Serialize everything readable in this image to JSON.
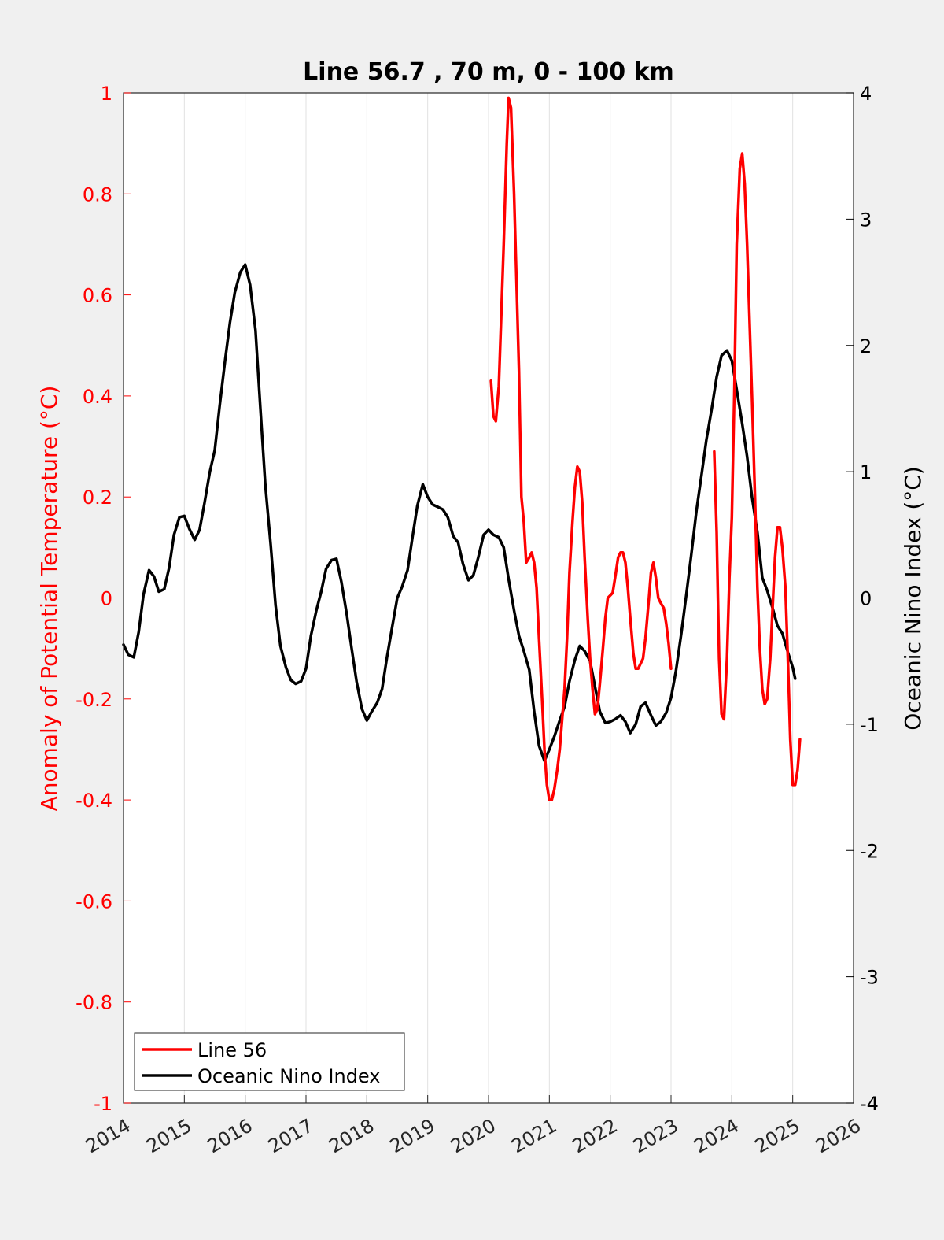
{
  "chart_data": {
    "type": "line",
    "title": "Line 56.7 , 70 m, 0 - 100 km",
    "ylabel_left": "Anomaly of Potential Temperature (°C)",
    "ylabel_right": "Oceanic Nino Index (°C)",
    "xlim": [
      2014,
      2026
    ],
    "ylim_left": [
      -1,
      1
    ],
    "ylim_right": [
      -4,
      4
    ],
    "x_ticks": [
      2014,
      2015,
      2016,
      2017,
      2018,
      2019,
      2020,
      2021,
      2022,
      2023,
      2024,
      2025,
      2026
    ],
    "x_tick_labels": [
      "2014",
      "2015",
      "2016",
      "2017",
      "2018",
      "2019",
      "2020",
      "2021",
      "2022",
      "2023",
      "2024",
      "2025",
      "2026"
    ],
    "y_ticks_left": [
      1,
      0.8,
      0.6,
      0.4,
      0.2,
      0,
      -0.2,
      -0.4,
      -0.6,
      -0.8,
      -1
    ],
    "y_tick_labels_left": [
      "1",
      "0.8",
      "0.6",
      "0.4",
      "0.2",
      "0",
      "-0.2",
      "-0.4",
      "-0.6",
      "-0.8",
      "-1"
    ],
    "y_ticks_right": [
      4,
      3,
      2,
      1,
      0,
      -1,
      -2,
      -3,
      -4
    ],
    "y_tick_labels_right": [
      "4",
      "3",
      "2",
      "1",
      "0",
      "-1",
      "-2",
      "-3",
      "-4"
    ],
    "grid": "vertical",
    "zero_line": true,
    "legend_position": "bottom-left",
    "colors": {
      "line56": "#ff0000",
      "oni": "#000000",
      "left_axis": "#ff0000",
      "right_axis": "#000000"
    },
    "series": [
      {
        "name": "Line 56",
        "axis": "left",
        "color": "#ff0000",
        "segments": [
          [
            [
              2020.04,
              0.43
            ],
            [
              2020.08,
              0.36
            ],
            [
              2020.12,
              0.35
            ],
            [
              2020.17,
              0.42
            ],
            [
              2020.25,
              0.7
            ],
            [
              2020.3,
              0.9
            ],
            [
              2020.33,
              0.99
            ],
            [
              2020.37,
              0.97
            ],
            [
              2020.42,
              0.8
            ],
            [
              2020.5,
              0.45
            ],
            [
              2020.54,
              0.2
            ],
            [
              2020.58,
              0.15
            ],
            [
              2020.62,
              0.07
            ],
            [
              2020.67,
              0.08
            ],
            [
              2020.71,
              0.09
            ],
            [
              2020.75,
              0.07
            ],
            [
              2020.79,
              0.02
            ],
            [
              2020.83,
              -0.08
            ],
            [
              2020.88,
              -0.2
            ],
            [
              2020.92,
              -0.3
            ],
            [
              2020.96,
              -0.37
            ],
            [
              2021.0,
              -0.4
            ],
            [
              2021.04,
              -0.4
            ],
            [
              2021.08,
              -0.38
            ],
            [
              2021.13,
              -0.34
            ],
            [
              2021.17,
              -0.3
            ],
            [
              2021.25,
              -0.18
            ],
            [
              2021.29,
              -0.08
            ],
            [
              2021.33,
              0.05
            ],
            [
              2021.38,
              0.15
            ],
            [
              2021.42,
              0.22
            ],
            [
              2021.46,
              0.26
            ],
            [
              2021.5,
              0.25
            ],
            [
              2021.54,
              0.19
            ],
            [
              2021.58,
              0.08
            ],
            [
              2021.63,
              -0.04
            ],
            [
              2021.67,
              -0.12
            ],
            [
              2021.71,
              -0.18
            ],
            [
              2021.75,
              -0.23
            ],
            [
              2021.79,
              -0.22
            ],
            [
              2021.83,
              -0.17
            ],
            [
              2021.88,
              -0.1
            ],
            [
              2021.92,
              -0.04
            ],
            [
              2021.96,
              0.0
            ],
            [
              2022.04,
              0.01
            ],
            [
              2022.08,
              0.04
            ],
            [
              2022.13,
              0.08
            ],
            [
              2022.17,
              0.09
            ],
            [
              2022.21,
              0.09
            ],
            [
              2022.25,
              0.07
            ],
            [
              2022.29,
              0.02
            ],
            [
              2022.33,
              -0.04
            ],
            [
              2022.38,
              -0.11
            ],
            [
              2022.42,
              -0.14
            ],
            [
              2022.46,
              -0.14
            ],
            [
              2022.5,
              -0.13
            ],
            [
              2022.54,
              -0.12
            ],
            [
              2022.58,
              -0.08
            ],
            [
              2022.63,
              -0.01
            ],
            [
              2022.67,
              0.05
            ],
            [
              2022.71,
              0.07
            ],
            [
              2022.75,
              0.04
            ],
            [
              2022.79,
              0.0
            ],
            [
              2022.83,
              -0.01
            ],
            [
              2022.88,
              -0.02
            ],
            [
              2022.92,
              -0.05
            ],
            [
              2022.96,
              -0.09
            ],
            [
              2023.0,
              -0.14
            ]
          ],
          [
            [
              2023.71,
              0.29
            ],
            [
              2023.75,
              0.13
            ],
            [
              2023.79,
              -0.12
            ],
            [
              2023.83,
              -0.23
            ],
            [
              2023.87,
              -0.24
            ],
            [
              2023.92,
              -0.12
            ],
            [
              2023.96,
              0.04
            ],
            [
              2024.0,
              0.16
            ],
            [
              2024.04,
              0.4
            ],
            [
              2024.08,
              0.7
            ],
            [
              2024.13,
              0.85
            ],
            [
              2024.17,
              0.88
            ],
            [
              2024.21,
              0.82
            ],
            [
              2024.25,
              0.7
            ],
            [
              2024.29,
              0.55
            ],
            [
              2024.33,
              0.4
            ],
            [
              2024.38,
              0.2
            ],
            [
              2024.42,
              0.02
            ],
            [
              2024.46,
              -0.1
            ],
            [
              2024.5,
              -0.18
            ],
            [
              2024.54,
              -0.21
            ],
            [
              2024.58,
              -0.2
            ],
            [
              2024.63,
              -0.12
            ],
            [
              2024.67,
              -0.02
            ],
            [
              2024.71,
              0.08
            ],
            [
              2024.75,
              0.14
            ],
            [
              2024.79,
              0.14
            ],
            [
              2024.83,
              0.1
            ],
            [
              2024.88,
              0.02
            ],
            [
              2024.92,
              -0.12
            ],
            [
              2024.96,
              -0.28
            ],
            [
              2025.0,
              -0.37
            ],
            [
              2025.04,
              -0.37
            ],
            [
              2025.08,
              -0.34
            ],
            [
              2025.12,
              -0.28
            ]
          ]
        ]
      },
      {
        "name": "Oceanic Nino Index",
        "axis": "right",
        "color": "#000000",
        "segments": [
          [
            [
              2014.0,
              -0.37
            ],
            [
              2014.08,
              -0.45
            ],
            [
              2014.17,
              -0.47
            ],
            [
              2014.25,
              -0.27
            ],
            [
              2014.33,
              0.03
            ],
            [
              2014.42,
              0.22
            ],
            [
              2014.5,
              0.17
            ],
            [
              2014.58,
              0.05
            ],
            [
              2014.67,
              0.07
            ],
            [
              2014.75,
              0.24
            ],
            [
              2014.83,
              0.5
            ],
            [
              2014.92,
              0.64
            ],
            [
              2015.0,
              0.65
            ],
            [
              2015.08,
              0.55
            ],
            [
              2015.17,
              0.46
            ],
            [
              2015.25,
              0.54
            ],
            [
              2015.33,
              0.75
            ],
            [
              2015.42,
              1.0
            ],
            [
              2015.5,
              1.17
            ],
            [
              2015.58,
              1.52
            ],
            [
              2015.67,
              1.88
            ],
            [
              2015.75,
              2.18
            ],
            [
              2015.83,
              2.42
            ],
            [
              2015.92,
              2.58
            ],
            [
              2016.0,
              2.64
            ],
            [
              2016.08,
              2.48
            ],
            [
              2016.17,
              2.12
            ],
            [
              2016.25,
              1.5
            ],
            [
              2016.33,
              0.9
            ],
            [
              2016.42,
              0.42
            ],
            [
              2016.5,
              -0.06
            ],
            [
              2016.58,
              -0.38
            ],
            [
              2016.67,
              -0.55
            ],
            [
              2016.75,
              -0.65
            ],
            [
              2016.83,
              -0.68
            ],
            [
              2016.92,
              -0.66
            ],
            [
              2017.0,
              -0.56
            ],
            [
              2017.08,
              -0.3
            ],
            [
              2017.17,
              -0.1
            ],
            [
              2017.25,
              0.05
            ],
            [
              2017.33,
              0.23
            ],
            [
              2017.42,
              0.3
            ],
            [
              2017.5,
              0.31
            ],
            [
              2017.58,
              0.13
            ],
            [
              2017.67,
              -0.13
            ],
            [
              2017.75,
              -0.4
            ],
            [
              2017.83,
              -0.66
            ],
            [
              2017.92,
              -0.88
            ],
            [
              2018.0,
              -0.97
            ],
            [
              2018.08,
              -0.9
            ],
            [
              2018.17,
              -0.83
            ],
            [
              2018.25,
              -0.72
            ],
            [
              2018.33,
              -0.47
            ],
            [
              2018.42,
              -0.22
            ],
            [
              2018.5,
              0.0
            ],
            [
              2018.58,
              0.09
            ],
            [
              2018.67,
              0.22
            ],
            [
              2018.75,
              0.48
            ],
            [
              2018.83,
              0.73
            ],
            [
              2018.92,
              0.9
            ],
            [
              2019.0,
              0.8
            ],
            [
              2019.08,
              0.74
            ],
            [
              2019.17,
              0.72
            ],
            [
              2019.25,
              0.7
            ],
            [
              2019.33,
              0.64
            ],
            [
              2019.42,
              0.49
            ],
            [
              2019.5,
              0.44
            ],
            [
              2019.58,
              0.27
            ],
            [
              2019.67,
              0.14
            ],
            [
              2019.75,
              0.18
            ],
            [
              2019.83,
              0.32
            ],
            [
              2019.92,
              0.5
            ],
            [
              2020.0,
              0.54
            ],
            [
              2020.08,
              0.5
            ],
            [
              2020.17,
              0.48
            ],
            [
              2020.25,
              0.4
            ],
            [
              2020.33,
              0.15
            ],
            [
              2020.42,
              -0.1
            ],
            [
              2020.5,
              -0.3
            ],
            [
              2020.58,
              -0.42
            ],
            [
              2020.67,
              -0.57
            ],
            [
              2020.75,
              -0.9
            ],
            [
              2020.83,
              -1.17
            ],
            [
              2020.92,
              -1.29
            ],
            [
              2021.0,
              -1.2
            ],
            [
              2021.08,
              -1.1
            ],
            [
              2021.17,
              -0.97
            ],
            [
              2021.25,
              -0.86
            ],
            [
              2021.33,
              -0.66
            ],
            [
              2021.42,
              -0.49
            ],
            [
              2021.5,
              -0.38
            ],
            [
              2021.58,
              -0.42
            ],
            [
              2021.67,
              -0.5
            ],
            [
              2021.75,
              -0.7
            ],
            [
              2021.83,
              -0.9
            ],
            [
              2021.92,
              -0.99
            ],
            [
              2022.0,
              -0.98
            ],
            [
              2022.08,
              -0.96
            ],
            [
              2022.17,
              -0.93
            ],
            [
              2022.25,
              -0.98
            ],
            [
              2022.33,
              -1.07
            ],
            [
              2022.42,
              -1.0
            ],
            [
              2022.5,
              -0.86
            ],
            [
              2022.58,
              -0.83
            ],
            [
              2022.67,
              -0.93
            ],
            [
              2022.75,
              -1.01
            ],
            [
              2022.83,
              -0.98
            ],
            [
              2022.92,
              -0.91
            ],
            [
              2023.0,
              -0.79
            ],
            [
              2023.08,
              -0.58
            ],
            [
              2023.17,
              -0.28
            ],
            [
              2023.25,
              0.02
            ],
            [
              2023.33,
              0.33
            ],
            [
              2023.42,
              0.7
            ],
            [
              2023.5,
              0.97
            ],
            [
              2023.58,
              1.25
            ],
            [
              2023.67,
              1.5
            ],
            [
              2023.75,
              1.75
            ],
            [
              2023.83,
              1.92
            ],
            [
              2023.92,
              1.96
            ],
            [
              2024.0,
              1.88
            ],
            [
              2024.08,
              1.65
            ],
            [
              2024.17,
              1.38
            ],
            [
              2024.25,
              1.12
            ],
            [
              2024.33,
              0.8
            ],
            [
              2024.42,
              0.52
            ],
            [
              2024.5,
              0.16
            ],
            [
              2024.58,
              0.06
            ],
            [
              2024.67,
              -0.08
            ],
            [
              2024.75,
              -0.22
            ],
            [
              2024.83,
              -0.28
            ],
            [
              2024.92,
              -0.43
            ],
            [
              2025.0,
              -0.55
            ],
            [
              2025.04,
              -0.64
            ]
          ]
        ]
      }
    ]
  }
}
